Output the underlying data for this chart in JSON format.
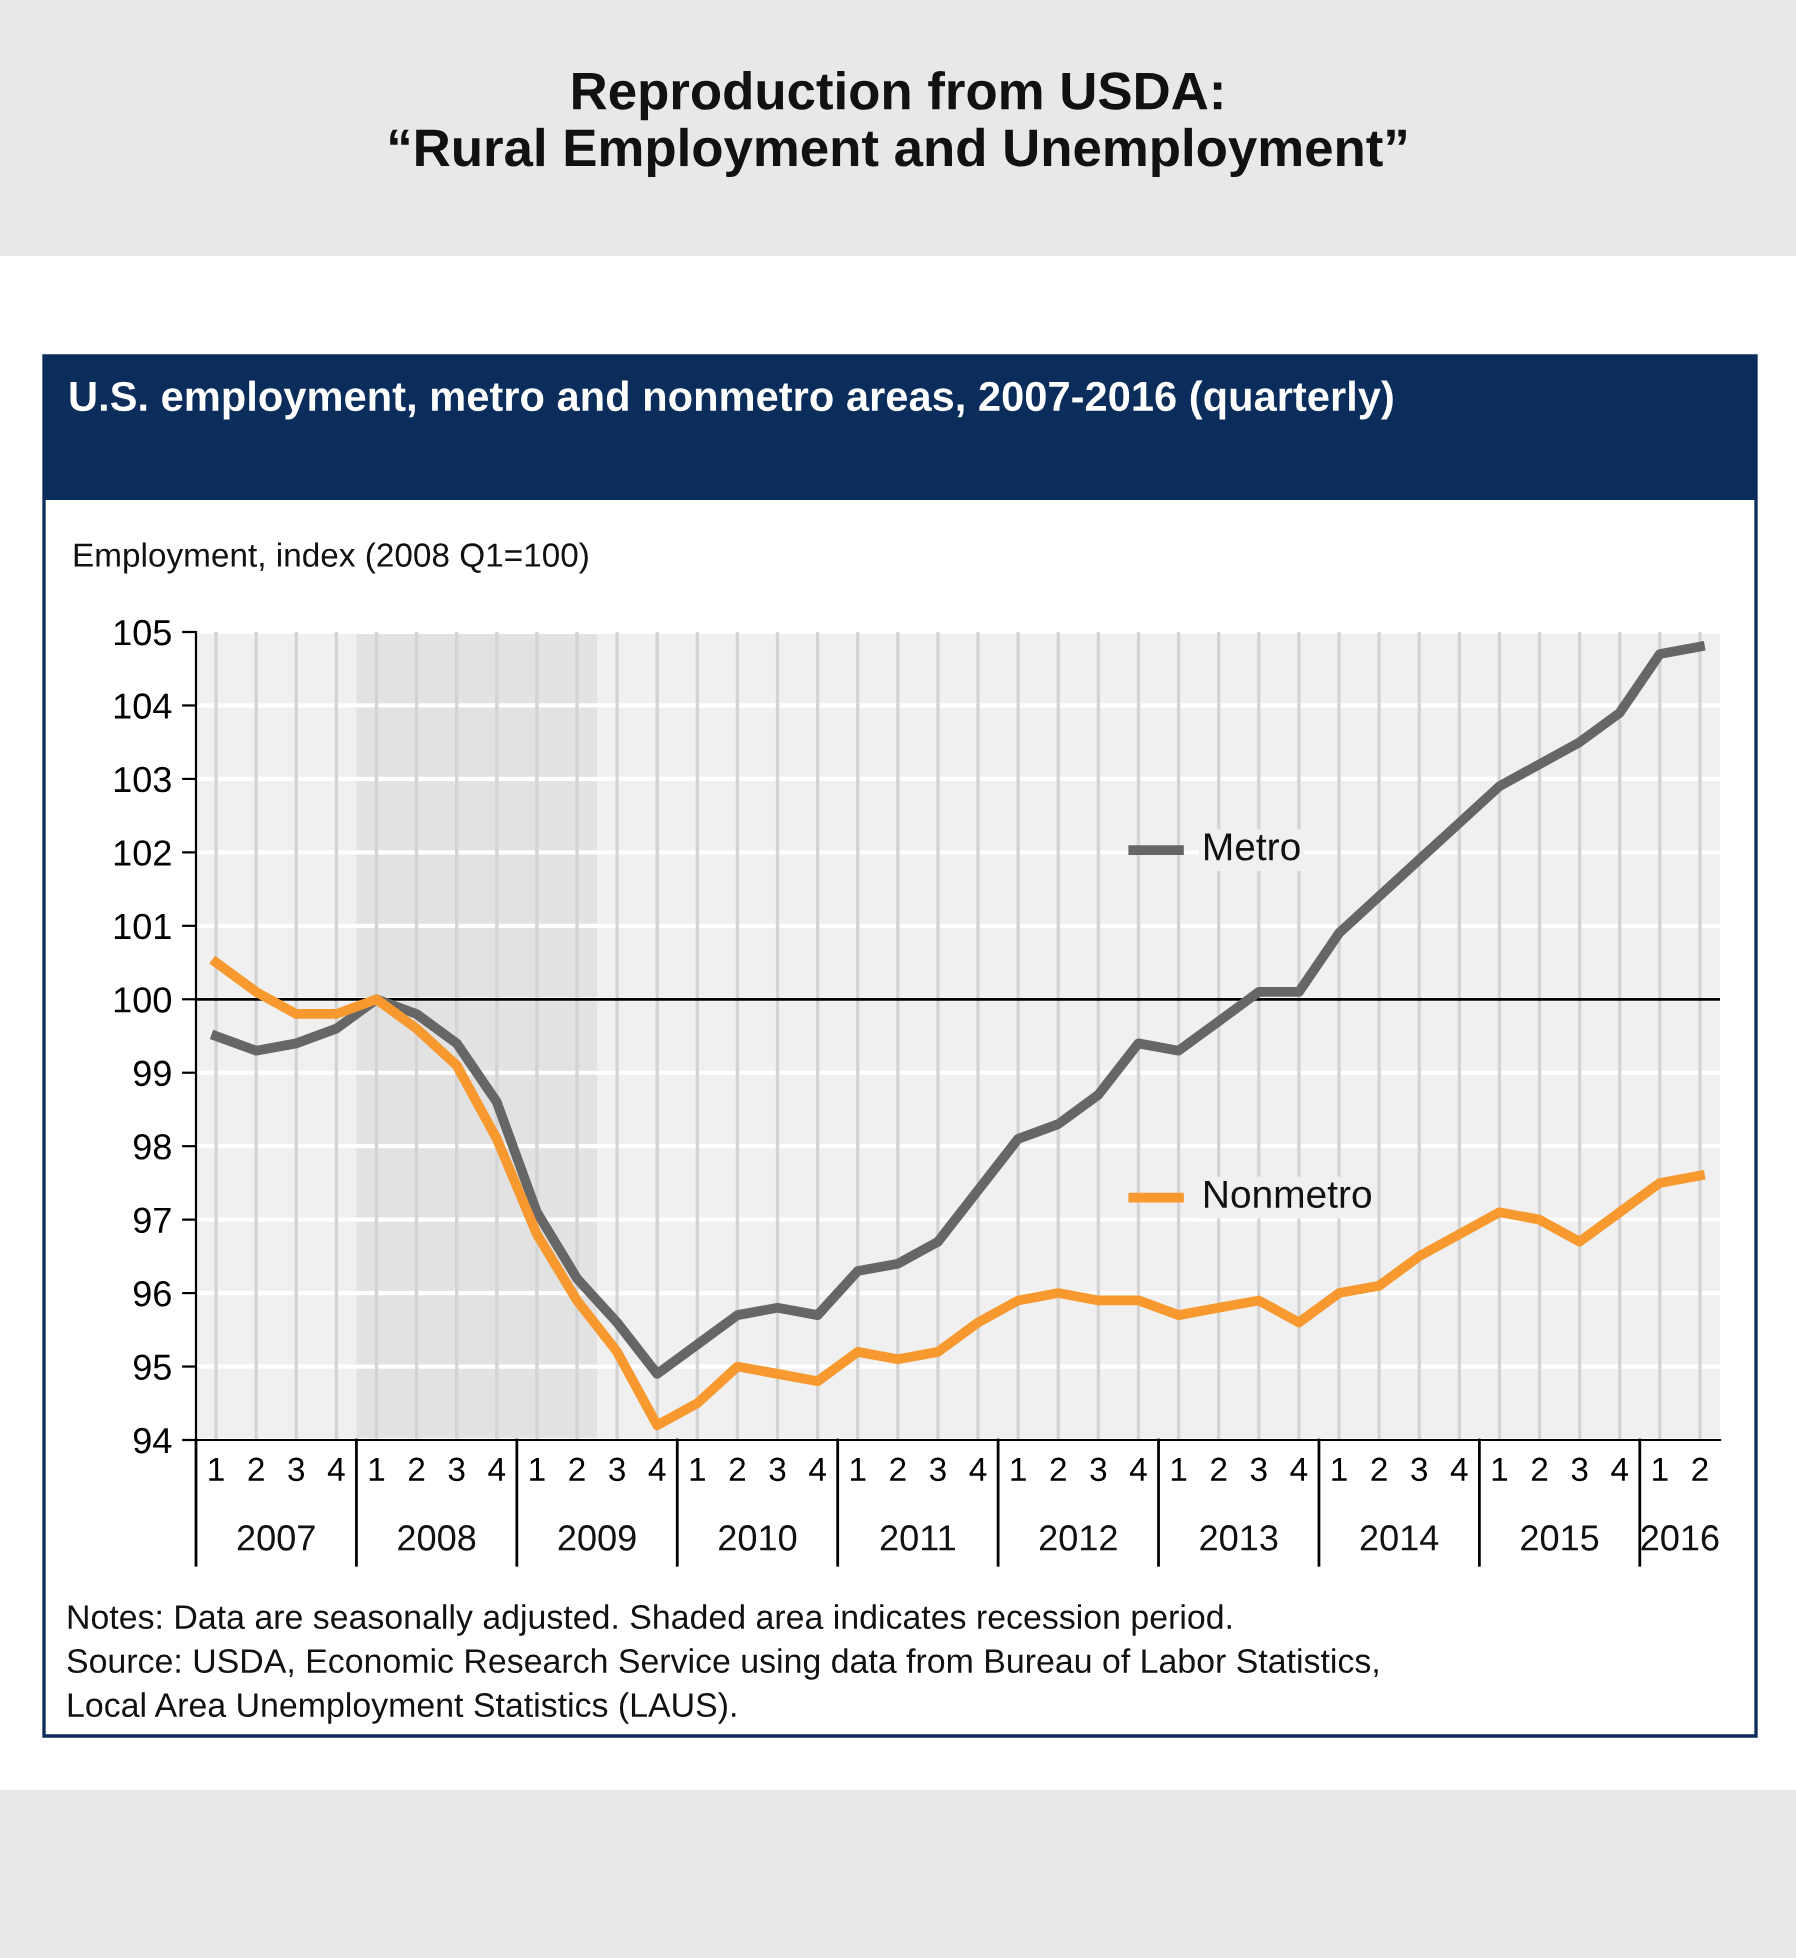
{
  "chart_data": {
    "type": "line",
    "title": "Reproduction from USDA:\n“Rural Employment and Unemployment”",
    "subtitle": "U.S. employment, metro and nonmetro areas, 2007-2016 (quarterly)",
    "ylabel": "Employment, index (2008 Q1=100)",
    "categories": [
      "1",
      "2",
      "3",
      "4",
      "1",
      "2",
      "3",
      "4",
      "1",
      "2",
      "3",
      "4",
      "1",
      "2",
      "3",
      "4",
      "1",
      "2",
      "3",
      "4",
      "1",
      "2",
      "3",
      "4",
      "1",
      "2",
      "3",
      "4",
      "1",
      "2",
      "3",
      "4",
      "1",
      "2",
      "3",
      "4",
      "1",
      "2"
    ],
    "series": [
      {
        "name": "Metro",
        "color": "#666666",
        "values": [
          99.5,
          99.3,
          99.4,
          99.6,
          100.0,
          99.8,
          99.4,
          98.6,
          97.1,
          96.2,
          95.6,
          94.9,
          95.3,
          95.7,
          95.8,
          95.7,
          96.3,
          96.4,
          96.7,
          97.4,
          98.1,
          98.3,
          98.7,
          99.4,
          99.3,
          99.7,
          100.1,
          100.1,
          100.9,
          101.4,
          101.9,
          102.4,
          102.9,
          103.2,
          103.5,
          103.9,
          104.7,
          104.8
        ]
      },
      {
        "name": "Nonmetro",
        "color": "#f7992f",
        "values": [
          100.5,
          100.1,
          99.8,
          99.8,
          100.0,
          99.6,
          99.1,
          98.1,
          96.8,
          95.9,
          95.2,
          94.2,
          94.5,
          95.0,
          94.9,
          94.8,
          95.2,
          95.1,
          95.2,
          95.6,
          95.9,
          96.0,
          95.9,
          95.9,
          95.7,
          95.8,
          95.9,
          95.6,
          96.0,
          96.1,
          96.5,
          96.8,
          97.1,
          97.0,
          96.7,
          97.1,
          97.5,
          97.6
        ]
      }
    ],
    "ylim": [
      94,
      105
    ],
    "yticks": [
      94,
      95,
      96,
      97,
      98,
      99,
      100,
      101,
      102,
      103,
      104,
      105
    ],
    "ref_lines": [
      {
        "axis": "y",
        "value": 100,
        "color": "#000000"
      }
    ],
    "grid": true,
    "legend": "right",
    "annotations": [
      "2007",
      "2008",
      "2009",
      "2010",
      "2011",
      "2012",
      "2013",
      "2014",
      "2015",
      "2016",
      "Notes: Data are seasonally adjusted. Shaded area indicates recession period.",
      "Source: USDA, Economic Research Service using data from Bureau of Labor Statistics,",
      "Local Area Unemployment Statistics (LAUS)."
    ]
  }
}
